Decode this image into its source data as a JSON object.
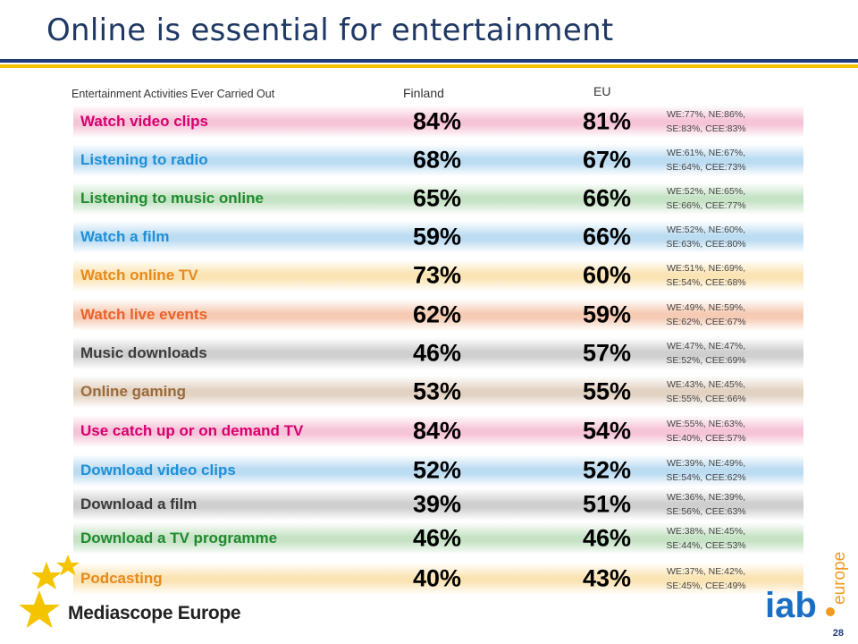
{
  "title": "Online is essential for entertainment",
  "headers": {
    "activities": "Entertainment Activities Ever Carried Out",
    "finland": "Finland",
    "eu": "EU"
  },
  "rows": [
    {
      "activity": "Watch video clips",
      "finland": "84%",
      "eu": "81%",
      "b1": "WE:77%, NE:86%,",
      "b2": "SE:83%, CEE:83%",
      "color": "#d6006f",
      "bg": "#f6c4d8"
    },
    {
      "activity": "Listening to radio",
      "finland": "68%",
      "eu": "67%",
      "b1": "WE:61%, NE:67%,",
      "b2": "SE:64%, CEE:73%",
      "color": "#1f8fd6",
      "bg": "#bcdcf2"
    },
    {
      "activity": "Listening to music online",
      "finland": "65%",
      "eu": "66%",
      "b1": "WE:52%, NE:65%,",
      "b2": "SE:66%, CEE:77%",
      "color": "#1f8a2e",
      "bg": "#c6e3c6"
    },
    {
      "activity": "Watch a film",
      "finland": "59%",
      "eu": "66%",
      "b1": "WE:52%, NE:60%,",
      "b2": "SE:63%, CEE:80%",
      "color": "#1f8fd6",
      "bg": "#bcdcf2"
    },
    {
      "activity": "Watch online TV",
      "finland": "73%",
      "eu": "60%",
      "b1": "WE:51%, NE:69%,",
      "b2": "SE:54%, CEE:68%",
      "color": "#e58a1f",
      "bg": "#fbe4b4"
    },
    {
      "activity": "Watch live events",
      "finland": "62%",
      "eu": "59%",
      "b1": "WE:49%, NE:59%,",
      "b2": "SE:62%, CEE:67%",
      "color": "#e8622a",
      "bg": "#f6cbb4"
    },
    {
      "activity": "Music downloads",
      "finland": "46%",
      "eu": "57%",
      "b1": "WE:47%, NE:47%,",
      "b2": "SE:52%, CEE:69%",
      "color": "#3a3a3a",
      "bg": "#cfcfcf"
    },
    {
      "activity": "Online gaming",
      "finland": "53%",
      "eu": "55%",
      "b1": "WE:43%, NE:45%,",
      "b2": "SE:55%, CEE:66%",
      "color": "#9b6a3c",
      "bg": "#e2d2c2"
    },
    {
      "activity": "Use catch up or on demand TV",
      "finland": "84%",
      "eu": "54%",
      "b1": "WE:55%, NE:63%,",
      "b2": "SE:40%, CEE:57%",
      "color": "#d6006f",
      "bg": "#f6c4d8"
    },
    {
      "activity": "Download video clips",
      "finland": "52%",
      "eu": "52%",
      "b1": "WE:39%, NE:49%,",
      "b2": "SE:54%, CEE:62%",
      "color": "#1f8fd6",
      "bg": "#bcdcf2"
    },
    {
      "activity": "Download a film",
      "finland": "39%",
      "eu": "51%",
      "b1": "WE:36%, NE:39%,",
      "b2": "SE:56%, CEE:63%",
      "color": "#3a3a3a",
      "bg": "#cfcfcf"
    },
    {
      "activity": "Download a TV programme",
      "finland": "46%",
      "eu": "46%",
      "b1": "WE:38%, NE:45%,",
      "b2": "SE:44%, CEE:53%",
      "color": "#1f8a2e",
      "bg": "#c6e3c6"
    },
    {
      "activity": "Podcasting",
      "finland": "40%",
      "eu": "43%",
      "b1": "WE:37%, NE:42%,",
      "b2": "SE:45%, CEE:49%",
      "color": "#e58a1f",
      "bg": "#fbe4b4"
    }
  ],
  "footer": {
    "brand": "Mediascope Europe",
    "logo_letters": "iab",
    "logo_sub": "europe",
    "page": "28"
  },
  "colors": {
    "title": "#1f3864",
    "rule_blue": "#1f3b7a",
    "rule_yellow": "#f2c200",
    "star": "#f5c400",
    "iab_blue": "#1a6fc4",
    "iab_orange": "#f29a1f"
  }
}
